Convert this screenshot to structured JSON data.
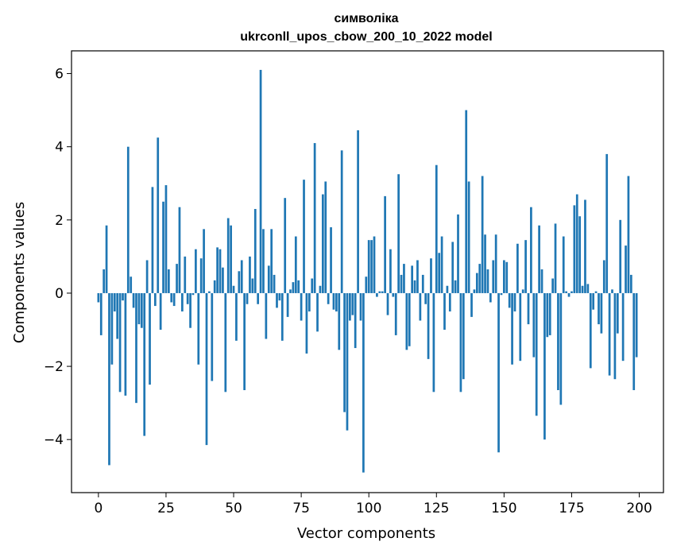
{
  "chart_data": {
    "type": "bar",
    "title": "символіка",
    "subtitle": "ukrconll_upos_cbow_200_10_2022 model",
    "xlabel": "Vector components",
    "ylabel": "Components values",
    "xlim": [
      -9.95,
      208.95
    ],
    "ylim": [
      -5.45,
      6.62
    ],
    "x_ticks": [
      0,
      25,
      50,
      75,
      100,
      125,
      150,
      175,
      200
    ],
    "x_tick_labels": [
      "0",
      "25",
      "50",
      "75",
      "100",
      "125",
      "150",
      "175",
      "200"
    ],
    "y_ticks": [
      -4,
      -2,
      0,
      2,
      4,
      6
    ],
    "y_tick_labels": [
      "−4",
      "−2",
      "0",
      "2",
      "4",
      "6"
    ],
    "grid": false,
    "legend": "none",
    "bar_color": "#1f77b4",
    "values": [
      -0.25,
      -1.15,
      0.65,
      1.85,
      -4.7,
      -1.95,
      -0.5,
      -1.25,
      -2.7,
      -0.2,
      -2.8,
      4.0,
      0.45,
      -0.4,
      -3.0,
      -0.85,
      -0.95,
      -3.9,
      0.9,
      -2.5,
      2.9,
      -0.35,
      4.25,
      -1.0,
      2.5,
      2.95,
      0.65,
      -0.25,
      -0.35,
      0.8,
      2.35,
      -0.5,
      1.0,
      -0.3,
      -0.95,
      -0.05,
      1.2,
      -1.95,
      0.95,
      1.75,
      -4.15,
      0.05,
      -2.4,
      0.35,
      1.25,
      1.2,
      0.7,
      -2.7,
      2.05,
      1.85,
      0.2,
      -1.3,
      0.6,
      0.9,
      -2.65,
      -0.3,
      1.0,
      0.4,
      2.3,
      -0.3,
      6.1,
      1.75,
      -1.25,
      0.75,
      1.75,
      0.5,
      -0.4,
      -0.2,
      -1.3,
      2.6,
      -0.65,
      0.1,
      0.3,
      1.55,
      0.35,
      -0.75,
      3.1,
      -1.65,
      -0.5,
      0.4,
      4.1,
      -1.05,
      0.2,
      2.7,
      3.05,
      -0.3,
      1.8,
      -0.45,
      -0.5,
      -1.55,
      3.9,
      -3.25,
      -3.75,
      -0.75,
      -0.6,
      -1.5,
      4.45,
      -0.75,
      -4.9,
      0.45,
      1.45,
      1.45,
      1.55,
      -0.1,
      0.05,
      0.05,
      2.65,
      -0.6,
      1.2,
      -0.1,
      -1.15,
      3.25,
      0.5,
      0.8,
      -1.55,
      -1.45,
      0.75,
      0.35,
      0.9,
      -0.75,
      0.5,
      -0.3,
      -1.8,
      0.95,
      -2.7,
      3.5,
      1.1,
      1.55,
      -1.0,
      0.2,
      -0.5,
      1.4,
      0.35,
      2.15,
      -2.7,
      -2.35,
      5.0,
      3.05,
      -0.65,
      0.1,
      0.55,
      0.8,
      3.2,
      1.6,
      0.65,
      -0.25,
      0.9,
      1.6,
      -4.35,
      -0.05,
      0.9,
      0.85,
      -0.4,
      -1.95,
      -0.5,
      1.35,
      -1.85,
      0.1,
      1.45,
      -0.85,
      2.35,
      -1.75,
      -3.35,
      1.85,
      0.65,
      -4.0,
      -1.2,
      -1.15,
      0.4,
      1.9,
      -2.65,
      -3.05,
      1.55,
      0.05,
      -0.1,
      0.05,
      2.4,
      2.7,
      2.1,
      0.2,
      2.55,
      0.25,
      -2.05,
      -0.45,
      0.05,
      -0.85,
      -1.1,
      0.9,
      3.8,
      -2.25,
      0.1,
      -2.35,
      -1.1,
      2.0,
      -1.85,
      1.3,
      3.2,
      0.5,
      -2.65,
      -1.75
    ]
  }
}
